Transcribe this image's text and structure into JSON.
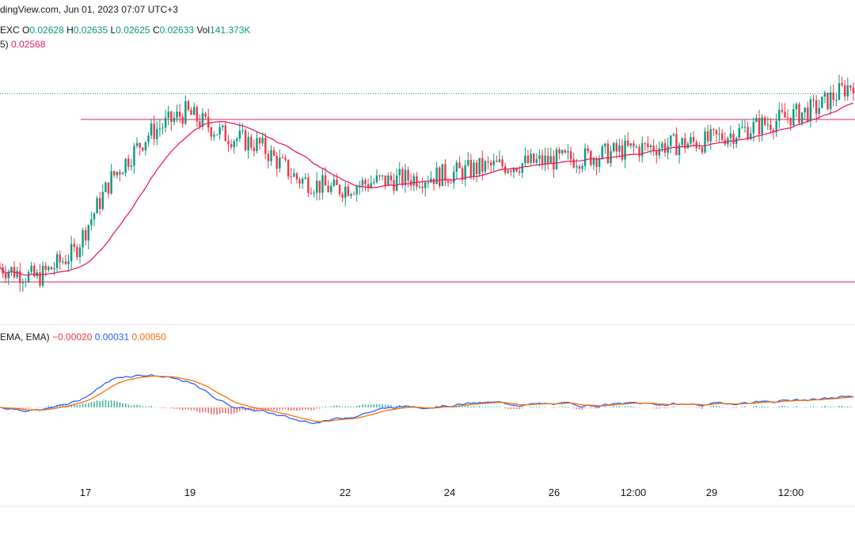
{
  "header": {
    "source": "dingView.com, Jun 01, 2023 07:07 UTC+3",
    "symbol_fragment": "EXC",
    "o_label": "O",
    "o_value": "0.02628",
    "h_label": "H",
    "h_value": "0.02635",
    "l_label": "L",
    "l_value": "0.02625",
    "c_value": "0.02633",
    "vol_label": "Vol",
    "vol_value": "141.373K",
    "ma_label": "5)",
    "ma_value": "0.02568"
  },
  "macd_header": {
    "label": "EMA, EMA)",
    "hist_value": "−0.00020",
    "macd_value": "0.00031",
    "signal_value": "0.00050"
  },
  "colors": {
    "up": "#089981",
    "down": "#f23645",
    "ma": "#e91e63",
    "macd": "#2962ff",
    "signal": "#ff6d00",
    "hist_up": "#26a69a",
    "hist_down": "#ef5350"
  },
  "chart_data": [
    {
      "type": "candlestick",
      "x_ticks": [
        "17",
        "19",
        "22",
        "24",
        "26",
        "12:00",
        "29",
        "12:00"
      ],
      "approx_close_path": [
        0.0244,
        0.02425,
        0.0246,
        0.0256,
        0.0262,
        0.0265,
        0.0262,
        0.02605,
        0.0256,
        0.02545,
        0.02555,
        0.0256,
        0.02565,
        0.02575,
        0.0258,
        0.02585,
        0.0259,
        0.026,
        0.02605,
        0.0261,
        0.02625,
        0.0264,
        0.02655,
        0.0269
      ],
      "moving_average_value": 0.02568,
      "horizontal_levels": [
        0.0264,
        0.0242
      ],
      "last_price_line": 0.02675
    },
    {
      "type": "line",
      "indicator": "MACD",
      "series": [
        {
          "name": "MACD",
          "last": 0.00031
        },
        {
          "name": "Signal",
          "last": 0.0005
        },
        {
          "name": "Histogram",
          "last": -0.0002
        }
      ]
    }
  ]
}
